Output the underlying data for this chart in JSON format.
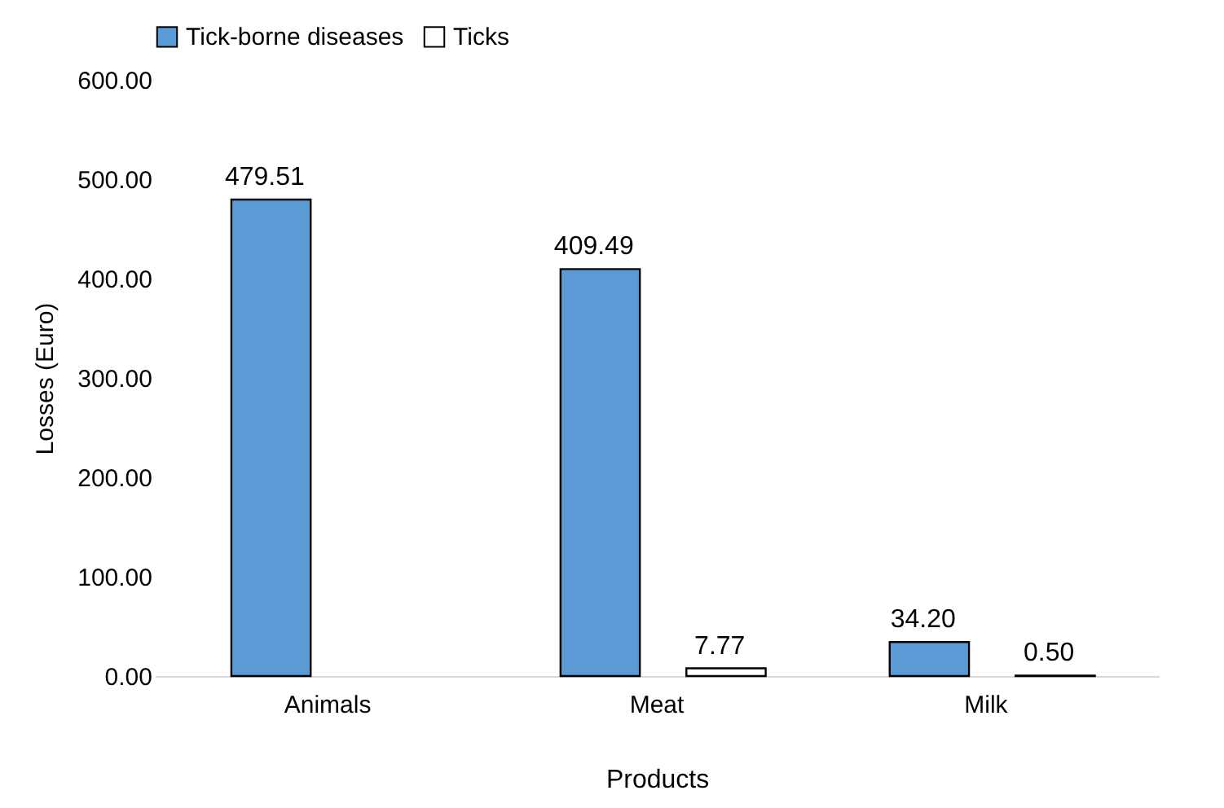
{
  "chart_data": {
    "type": "bar",
    "categories": [
      "Animals",
      "Meat",
      "Milk"
    ],
    "series": [
      {
        "name": "Tick-borne diseases",
        "color": "#5b9bd5",
        "values": [
          479.51,
          409.49,
          34.2
        ],
        "value_labels": [
          "479.51",
          "409.49",
          "34.20"
        ]
      },
      {
        "name": "Ticks",
        "color": "#ffffff",
        "values": [
          null,
          7.77,
          0.5
        ],
        "value_labels": [
          null,
          "7.77",
          "0.50"
        ]
      }
    ],
    "xlabel": "Products",
    "ylabel": "Losses (Euro)",
    "ylim": [
      0,
      600
    ],
    "yticks": [
      {
        "value": 0,
        "label": "0.00"
      },
      {
        "value": 100,
        "label": "100.00"
      },
      {
        "value": 200,
        "label": "200.00"
      },
      {
        "value": 300,
        "label": "300.00"
      },
      {
        "value": 400,
        "label": "400.00"
      },
      {
        "value": 500,
        "label": "500.00"
      },
      {
        "value": 600,
        "label": "600.00"
      }
    ],
    "grid": false,
    "legend": "top"
  }
}
